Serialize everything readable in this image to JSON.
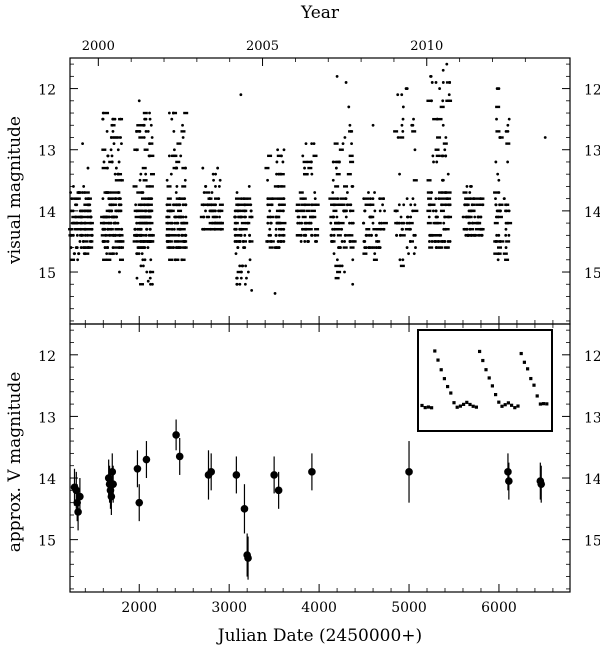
{
  "chart_data": [
    {
      "type": "scatter",
      "panel": "top",
      "ylabel": "visual magnitude",
      "top_axis_label": "Year",
      "top_ticks": [
        2000,
        2005,
        2010
      ],
      "top_tick_jd": [
        1545,
        3371,
        5197
      ],
      "y_ticks": [
        12,
        13,
        14,
        15
      ],
      "xlim": [
        1230,
        6790
      ],
      "ylim": [
        15.85,
        11.5
      ],
      "y_inverted": true,
      "seasons": [
        {
          "x": [
            1235,
            1480
          ],
          "y": [
            13.6,
            14.8
          ],
          "n": 120,
          "extra": [
            [
              1370,
              12.9
            ],
            [
              1430,
              13.3
            ]
          ]
        },
        {
          "x": [
            1590,
            1810
          ],
          "y": [
            12.4,
            14.9
          ],
          "n": 160,
          "extra": [
            [
              1780,
              15.0
            ]
          ]
        },
        {
          "x": [
            1950,
            2150
          ],
          "y": [
            12.3,
            15.2
          ],
          "n": 170,
          "extra": [
            [
              2000,
              12.2
            ],
            [
              2100,
              15.15
            ]
          ]
        },
        {
          "x": [
            2300,
            2520
          ],
          "y": [
            12.4,
            14.9
          ],
          "n": 130,
          "extra": [
            [
              2380,
              12.4
            ]
          ]
        },
        {
          "x": [
            2700,
            2920
          ],
          "y": [
            13.2,
            14.3
          ],
          "n": 80,
          "extra": []
        },
        {
          "x": [
            3060,
            3250
          ],
          "y": [
            13.6,
            15.3
          ],
          "n": 90,
          "extra": [
            [
              3130,
              12.1
            ],
            [
              3250,
              15.3
            ]
          ]
        },
        {
          "x": [
            3420,
            3610
          ],
          "y": [
            12.9,
            14.6
          ],
          "n": 80,
          "extra": [
            [
              3510,
              15.35
            ]
          ]
        },
        {
          "x": [
            3760,
            3990
          ],
          "y": [
            12.9,
            14.5
          ],
          "n": 70,
          "extra": []
        },
        {
          "x": [
            4130,
            4390
          ],
          "y": [
            12.6,
            15.2
          ],
          "n": 100,
          "extra": [
            [
              4200,
              11.8
            ],
            [
              4300,
              11.9
            ],
            [
              4330,
              12.3
            ]
          ]
        },
        {
          "x": [
            4490,
            4740
          ],
          "y": [
            13.6,
            14.8
          ],
          "n": 60,
          "extra": [
            [
              4600,
              12.6
            ]
          ]
        },
        {
          "x": [
            4850,
            5080
          ],
          "y": [
            12.0,
            14.9
          ],
          "n": 60,
          "extra": [
            [
              4980,
              12.0
            ],
            [
              5050,
              12.5
            ]
          ]
        },
        {
          "x": [
            5220,
            5460
          ],
          "y": [
            11.8,
            14.6
          ],
          "n": 110,
          "extra": [
            [
              5300,
              11.9
            ],
            [
              5340,
              12.0
            ],
            [
              5380,
              11.7
            ],
            [
              5420,
              11.6
            ]
          ]
        },
        {
          "x": [
            5600,
            5820
          ],
          "y": [
            13.6,
            14.4
          ],
          "n": 80,
          "extra": []
        },
        {
          "x": [
            5960,
            6120
          ],
          "y": [
            12.0,
            14.9
          ],
          "n": 60,
          "extra": [
            [
              5980,
              12.0
            ],
            [
              6100,
              12.7
            ]
          ]
        },
        {
          "x": [
            6440,
            6520
          ],
          "y": [
            12.8,
            12.8
          ],
          "n": 1,
          "extra": []
        }
      ]
    },
    {
      "type": "scatter",
      "panel": "bottom",
      "xlabel": "Julian Date (2450000+)",
      "ylabel": "approx. V magnitude",
      "x_ticks": [
        2000,
        3000,
        4000,
        5000,
        6000
      ],
      "y_ticks": [
        12,
        13,
        14,
        15
      ],
      "xlim": [
        1230,
        6790
      ],
      "ylim": [
        15.85,
        11.5
      ],
      "y_inverted": true,
      "points": [
        {
          "x": 1280,
          "y": 14.15,
          "err": 0.3
        },
        {
          "x": 1300,
          "y": 14.2,
          "err": 0.3
        },
        {
          "x": 1310,
          "y": 14.4,
          "err": 0.3
        },
        {
          "x": 1320,
          "y": 14.55,
          "err": 0.3
        },
        {
          "x": 1340,
          "y": 14.3,
          "err": 0.3
        },
        {
          "x": 1660,
          "y": 14.0,
          "err": 0.3
        },
        {
          "x": 1670,
          "y": 14.1,
          "err": 0.3
        },
        {
          "x": 1680,
          "y": 14.2,
          "err": 0.3
        },
        {
          "x": 1690,
          "y": 14.3,
          "err": 0.3
        },
        {
          "x": 1700,
          "y": 13.9,
          "err": 0.3
        },
        {
          "x": 1710,
          "y": 14.1,
          "err": 0.3
        },
        {
          "x": 1980,
          "y": 13.85,
          "err": 0.3
        },
        {
          "x": 2000,
          "y": 14.4,
          "err": 0.3
        },
        {
          "x": 2080,
          "y": 13.7,
          "err": 0.3
        },
        {
          "x": 2410,
          "y": 13.3,
          "err": 0.25
        },
        {
          "x": 2450,
          "y": 13.65,
          "err": 0.3
        },
        {
          "x": 2770,
          "y": 13.95,
          "err": 0.4
        },
        {
          "x": 2800,
          "y": 13.9,
          "err": 0.3
        },
        {
          "x": 3080,
          "y": 13.95,
          "err": 0.3
        },
        {
          "x": 3170,
          "y": 14.5,
          "err": 0.4
        },
        {
          "x": 3200,
          "y": 15.25,
          "err": 0.35
        },
        {
          "x": 3210,
          "y": 15.3,
          "err": 0.35
        },
        {
          "x": 3500,
          "y": 13.95,
          "err": 0.3
        },
        {
          "x": 3550,
          "y": 14.2,
          "err": 0.3
        },
        {
          "x": 3920,
          "y": 13.9,
          "err": 0.3
        },
        {
          "x": 5000,
          "y": 13.9,
          "err": 0.5
        },
        {
          "x": 6100,
          "y": 13.9,
          "err": 0.3
        },
        {
          "x": 6110,
          "y": 14.05,
          "err": 0.3
        },
        {
          "x": 6460,
          "y": 14.05,
          "err": 0.3
        },
        {
          "x": 6470,
          "y": 14.1,
          "err": 0.3
        }
      ]
    }
  ]
}
